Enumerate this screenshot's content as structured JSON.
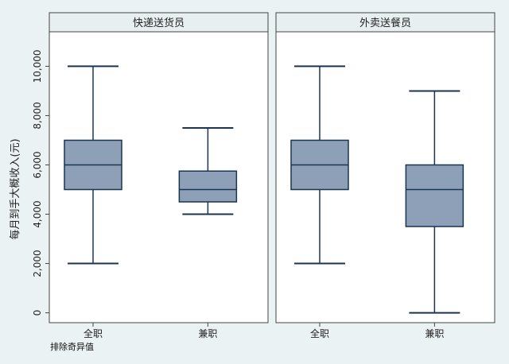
{
  "chart_data": {
    "type": "boxplot",
    "ylabel": "每月到手大概收入(元)",
    "ylim": [
      -400,
      11400
    ],
    "yticks": [
      0,
      2000,
      4000,
      6000,
      8000,
      10000
    ],
    "ytick_labels": [
      "0",
      "2,000",
      "4,000",
      "6,000",
      "8,000",
      "10,000"
    ],
    "categories": [
      "全职",
      "兼职"
    ],
    "note": "排除奇异值",
    "colors": {
      "box_fill": "#8da0b8",
      "box_stroke": "#1a3550",
      "panel_bg": "#ffffff",
      "page_bg": "#eaf2f3",
      "header_bg": "#e8eff0"
    },
    "panels": [
      {
        "title": "快递送货员",
        "boxes": [
          {
            "category": "全职",
            "min": 2000,
            "q1": 5000,
            "median": 6000,
            "q3": 7000,
            "max": 10000
          },
          {
            "category": "兼职",
            "min": 4000,
            "q1": 4500,
            "median": 5000,
            "q3": 5750,
            "max": 7500
          }
        ]
      },
      {
        "title": "外卖送餐员",
        "boxes": [
          {
            "category": "全职",
            "min": 2000,
            "q1": 5000,
            "median": 6000,
            "q3": 7000,
            "max": 10000
          },
          {
            "category": "兼职",
            "min": 0,
            "q1": 3500,
            "median": 5000,
            "q3": 6000,
            "max": 9000
          }
        ]
      }
    ]
  }
}
